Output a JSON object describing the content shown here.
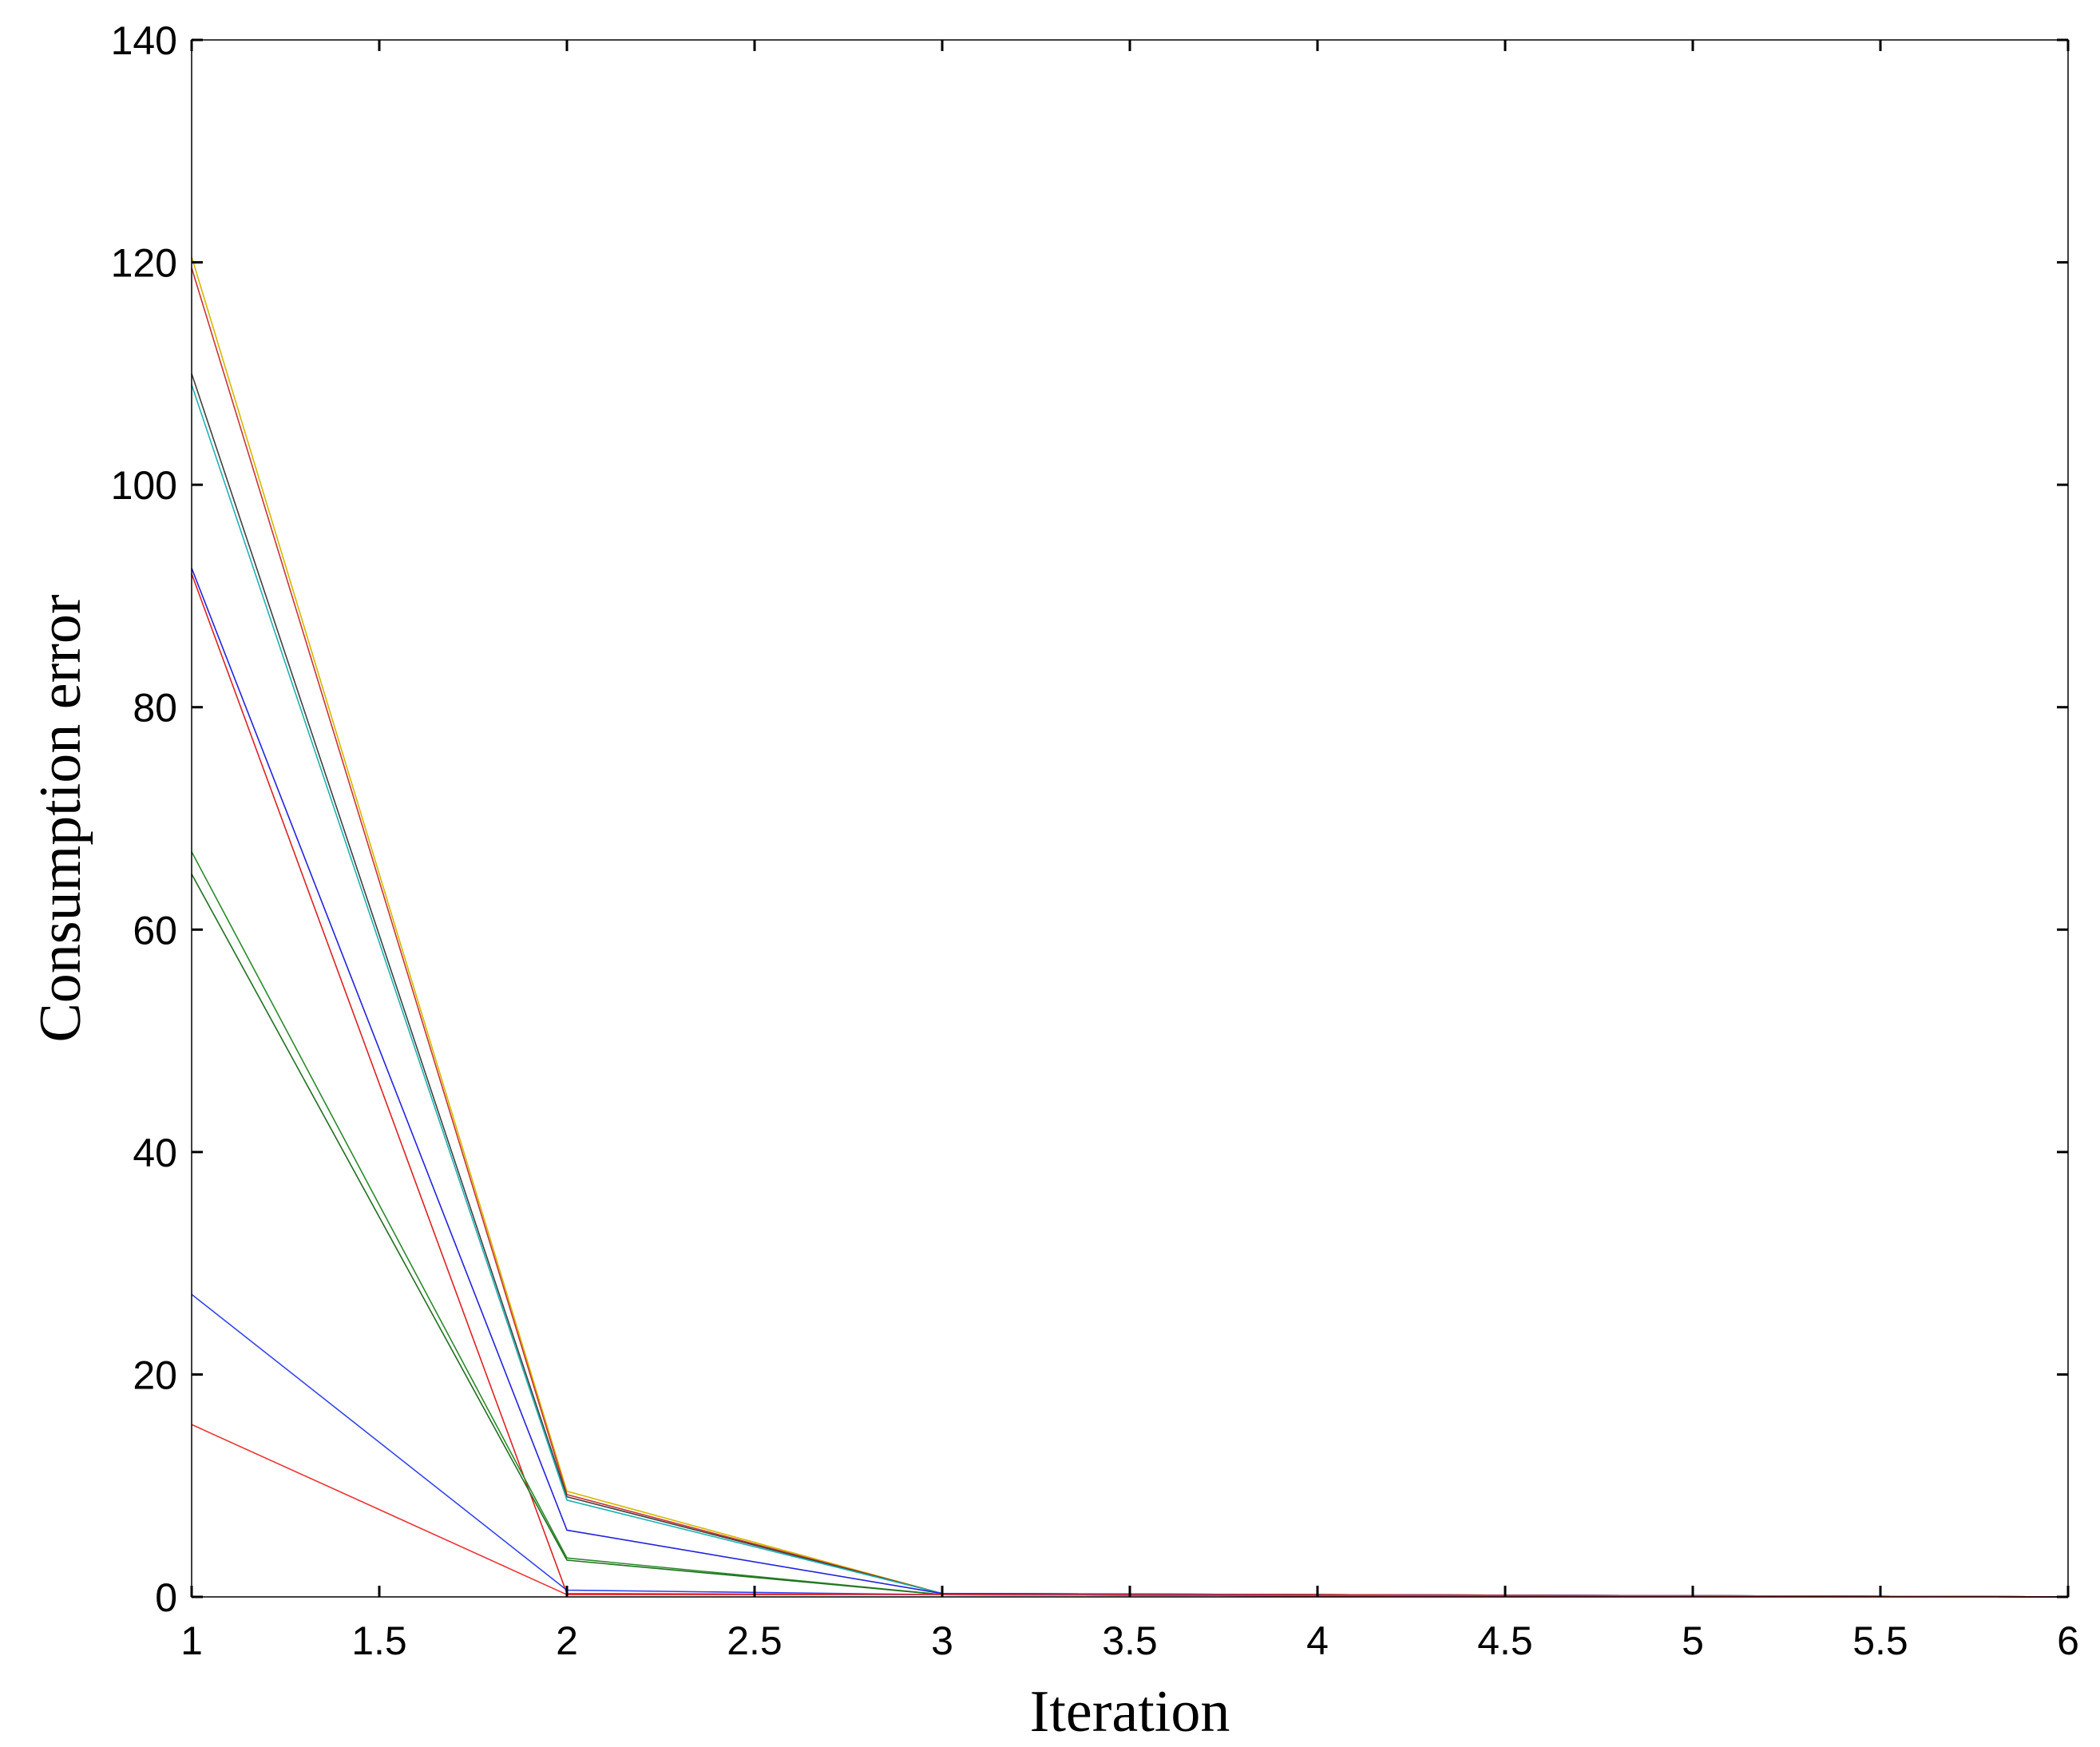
{
  "chart_data": {
    "type": "line",
    "title": "",
    "xlabel": "Iteration",
    "ylabel": "Consumption error",
    "xlim": [
      1,
      6
    ],
    "ylim": [
      0,
      140
    ],
    "xticks": [
      1,
      1.5,
      2,
      2.5,
      3,
      3.5,
      4,
      4.5,
      5,
      5.5,
      6
    ],
    "yticks": [
      0,
      20,
      40,
      60,
      80,
      100,
      120,
      140
    ],
    "xtick_labels": [
      "1",
      "1.5",
      "2",
      "2.5",
      "3",
      "3.5",
      "4",
      "4.5",
      "5",
      "5.5",
      "6"
    ],
    "ytick_labels": [
      "0",
      "20",
      "40",
      "60",
      "80",
      "100",
      "120",
      "140"
    ],
    "grid": false,
    "legend": "none",
    "x": [
      1,
      2,
      3,
      4,
      5,
      6
    ],
    "series": [
      {
        "color": "#d4b800",
        "values": [
          120.5,
          9.5,
          0.3,
          0.2,
          0.1,
          0.0
        ]
      },
      {
        "color": "#cc3333",
        "values": [
          119.5,
          9.2,
          0.3,
          0.2,
          0.1,
          0.0
        ]
      },
      {
        "color": "#404040",
        "values": [
          110.0,
          9.0,
          0.3,
          0.2,
          0.1,
          0.0
        ]
      },
      {
        "color": "#20b2b2",
        "values": [
          109.0,
          8.7,
          0.3,
          0.2,
          0.1,
          0.0
        ]
      },
      {
        "color": "#2222dd",
        "values": [
          92.5,
          6.0,
          0.3,
          0.2,
          0.1,
          0.0
        ]
      },
      {
        "color": "#dd2222",
        "values": [
          92.0,
          0.3,
          0.2,
          0.2,
          0.1,
          0.0
        ]
      },
      {
        "color": "#2a8a2a",
        "values": [
          67.0,
          3.5,
          0.2,
          0.1,
          0.1,
          0.0
        ]
      },
      {
        "color": "#1f6f1f",
        "values": [
          65.0,
          3.3,
          0.2,
          0.1,
          0.1,
          0.0
        ]
      },
      {
        "color": "#3344ee",
        "values": [
          27.2,
          0.6,
          0.2,
          0.1,
          0.1,
          0.0
        ]
      },
      {
        "color": "#ee3333",
        "values": [
          15.5,
          0.2,
          0.2,
          0.1,
          0.1,
          0.0
        ]
      }
    ]
  }
}
